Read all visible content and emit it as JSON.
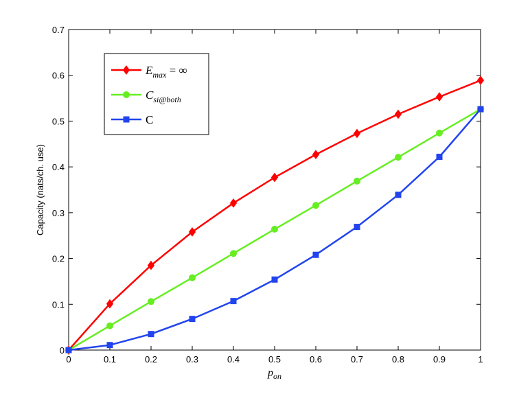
{
  "chart_data": {
    "type": "line",
    "x": [
      0,
      0.1,
      0.2,
      0.3,
      0.4,
      0.5,
      0.6,
      0.7,
      0.8,
      0.9,
      1
    ],
    "xlim": [
      0,
      1
    ],
    "ylim": [
      0,
      0.7
    ],
    "xticks": [
      0,
      0.1,
      0.2,
      0.3,
      0.4,
      0.5,
      0.6,
      0.7,
      0.8,
      0.9,
      1
    ],
    "xtick_labels": [
      "0",
      "0.1",
      "0.2",
      "0.3",
      "0.4",
      "0.5",
      "0.6",
      "0.7",
      "0.8",
      "0.9",
      "1"
    ],
    "yticks": [
      0,
      0.1,
      0.2,
      0.3,
      0.4,
      0.5,
      0.6,
      0.7
    ],
    "ytick_labels": [
      "0",
      "0.1",
      "0.2",
      "0.3",
      "0.4",
      "0.5",
      "0.6",
      "0.7"
    ],
    "xlabel": {
      "base": "p",
      "sub": "on"
    },
    "ylabel": "Capacity (nats/ch. use)",
    "grid": false,
    "legend_position": "top-left",
    "series": [
      {
        "name": {
          "base": "E",
          "sub": "max",
          "suffix": " = ∞"
        },
        "color": "#ff0000",
        "marker": "diamond",
        "values": [
          0,
          0.101,
          0.185,
          0.258,
          0.321,
          0.377,
          0.427,
          0.473,
          0.515,
          0.553,
          0.589
        ]
      },
      {
        "name": {
          "base": "C",
          "sub": "si@both",
          "suffix": ""
        },
        "color": "#66ee22",
        "marker": "circle",
        "values": [
          0,
          0.053,
          0.106,
          0.158,
          0.211,
          0.264,
          0.316,
          0.369,
          0.421,
          0.474,
          0.526
        ]
      },
      {
        "name": {
          "base": "C",
          "sub": "",
          "suffix": ""
        },
        "color": "#2244ee",
        "marker": "square",
        "values": [
          0,
          0.011,
          0.035,
          0.068,
          0.107,
          0.154,
          0.208,
          0.269,
          0.339,
          0.422,
          0.526
        ]
      }
    ]
  }
}
